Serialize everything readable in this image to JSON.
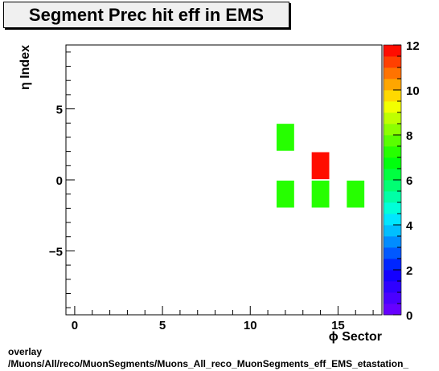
{
  "chart_data": {
    "type": "heatmap",
    "title": "Segment Prec hit eff in EMS",
    "xlabel": "ϕ Sector",
    "ylabel": "η Index",
    "xlim": [
      -0.5,
      17.5
    ],
    "ylim": [
      -9.5,
      9.5
    ],
    "x_ticks": [
      "0",
      "5",
      "10",
      "15"
    ],
    "y_ticks": [
      "−5",
      "0",
      "5"
    ],
    "x_tick_values": [
      0,
      5,
      10,
      15
    ],
    "y_tick_values": [
      -5,
      0,
      5
    ],
    "zlim": [
      0,
      12
    ],
    "z_ticks": [
      "0",
      "2",
      "4",
      "6",
      "8",
      "10",
      "12"
    ],
    "z_tick_values": [
      0,
      2,
      4,
      6,
      8,
      10,
      12
    ],
    "cells": [
      {
        "x": 12,
        "y": 3,
        "value": 7
      },
      {
        "x": 14,
        "y": 1,
        "value": 12
      },
      {
        "x": 12,
        "y": -1,
        "value": 7
      },
      {
        "x": 14,
        "y": -1,
        "value": 7
      },
      {
        "x": 16,
        "y": -1,
        "value": 7
      }
    ],
    "palette": [
      "#6600ff",
      "#4a00ff",
      "#2f00ff",
      "#1400ff",
      "#0026ff",
      "#0059ff",
      "#008cff",
      "#00bfff",
      "#00e6ff",
      "#00ffd9",
      "#00ffa6",
      "#00ff73",
      "#00ff40",
      "#00ff0d",
      "#26ff00",
      "#59ff00",
      "#8cff00",
      "#bfff00",
      "#f2ff00",
      "#ffd900",
      "#ffa600",
      "#ff7300",
      "#ff4000",
      "#ff0d00"
    ],
    "grid": false,
    "legend": "colorbar-right"
  },
  "footer": {
    "line1": "overlay",
    "line2": "/Muons/All/reco/MuonSegments/Muons_All_reco_MuonSegments_eff_EMS_etastation_"
  }
}
